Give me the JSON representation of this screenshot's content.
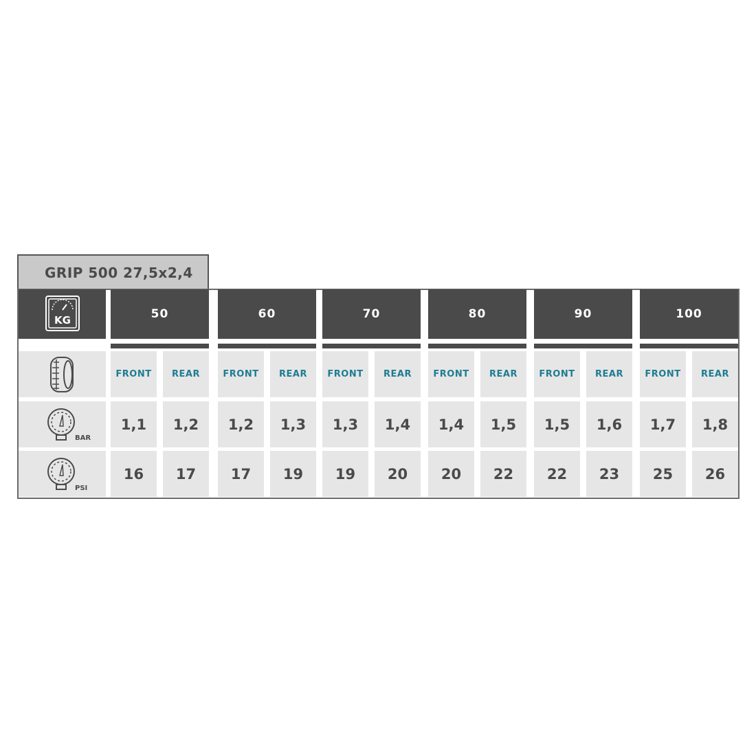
{
  "title": "GRIP 500 27,5x2,4",
  "row_icons": {
    "weight": "weight-scale-kg-icon",
    "tire": "tire-icon",
    "bar": "pressure-gauge-icon",
    "psi": "pressure-gauge-icon"
  },
  "weight_icon_label": "KG",
  "bar_unit": "BAR",
  "psi_unit": "PSI",
  "colors": {
    "header": "#4a4a4a",
    "cell": "#e6e6e6",
    "position_label": "#1e7d92",
    "title_bg": "#c9c9c9"
  },
  "groups": [
    {
      "weight": "50",
      "front": "FRONT",
      "rear": "REAR",
      "bar": [
        "1,1",
        "1,2"
      ],
      "psi": [
        "16",
        "17"
      ]
    },
    {
      "weight": "60",
      "front": "FRONT",
      "rear": "REAR",
      "bar": [
        "1,2",
        "1,3"
      ],
      "psi": [
        "17",
        "19"
      ]
    },
    {
      "weight": "70",
      "front": "FRONT",
      "rear": "REAR",
      "bar": [
        "1,3",
        "1,4"
      ],
      "psi": [
        "19",
        "20"
      ]
    },
    {
      "weight": "80",
      "front": "FRONT",
      "rear": "REAR",
      "bar": [
        "1,4",
        "1,5"
      ],
      "psi": [
        "20",
        "22"
      ]
    },
    {
      "weight": "90",
      "front": "FRONT",
      "rear": "REAR",
      "bar": [
        "1,5",
        "1,6"
      ],
      "psi": [
        "22",
        "23"
      ]
    },
    {
      "weight": "100",
      "front": "FRONT",
      "rear": "REAR",
      "bar": [
        "1,7",
        "1,8"
      ],
      "psi": [
        "25",
        "26"
      ]
    }
  ]
}
